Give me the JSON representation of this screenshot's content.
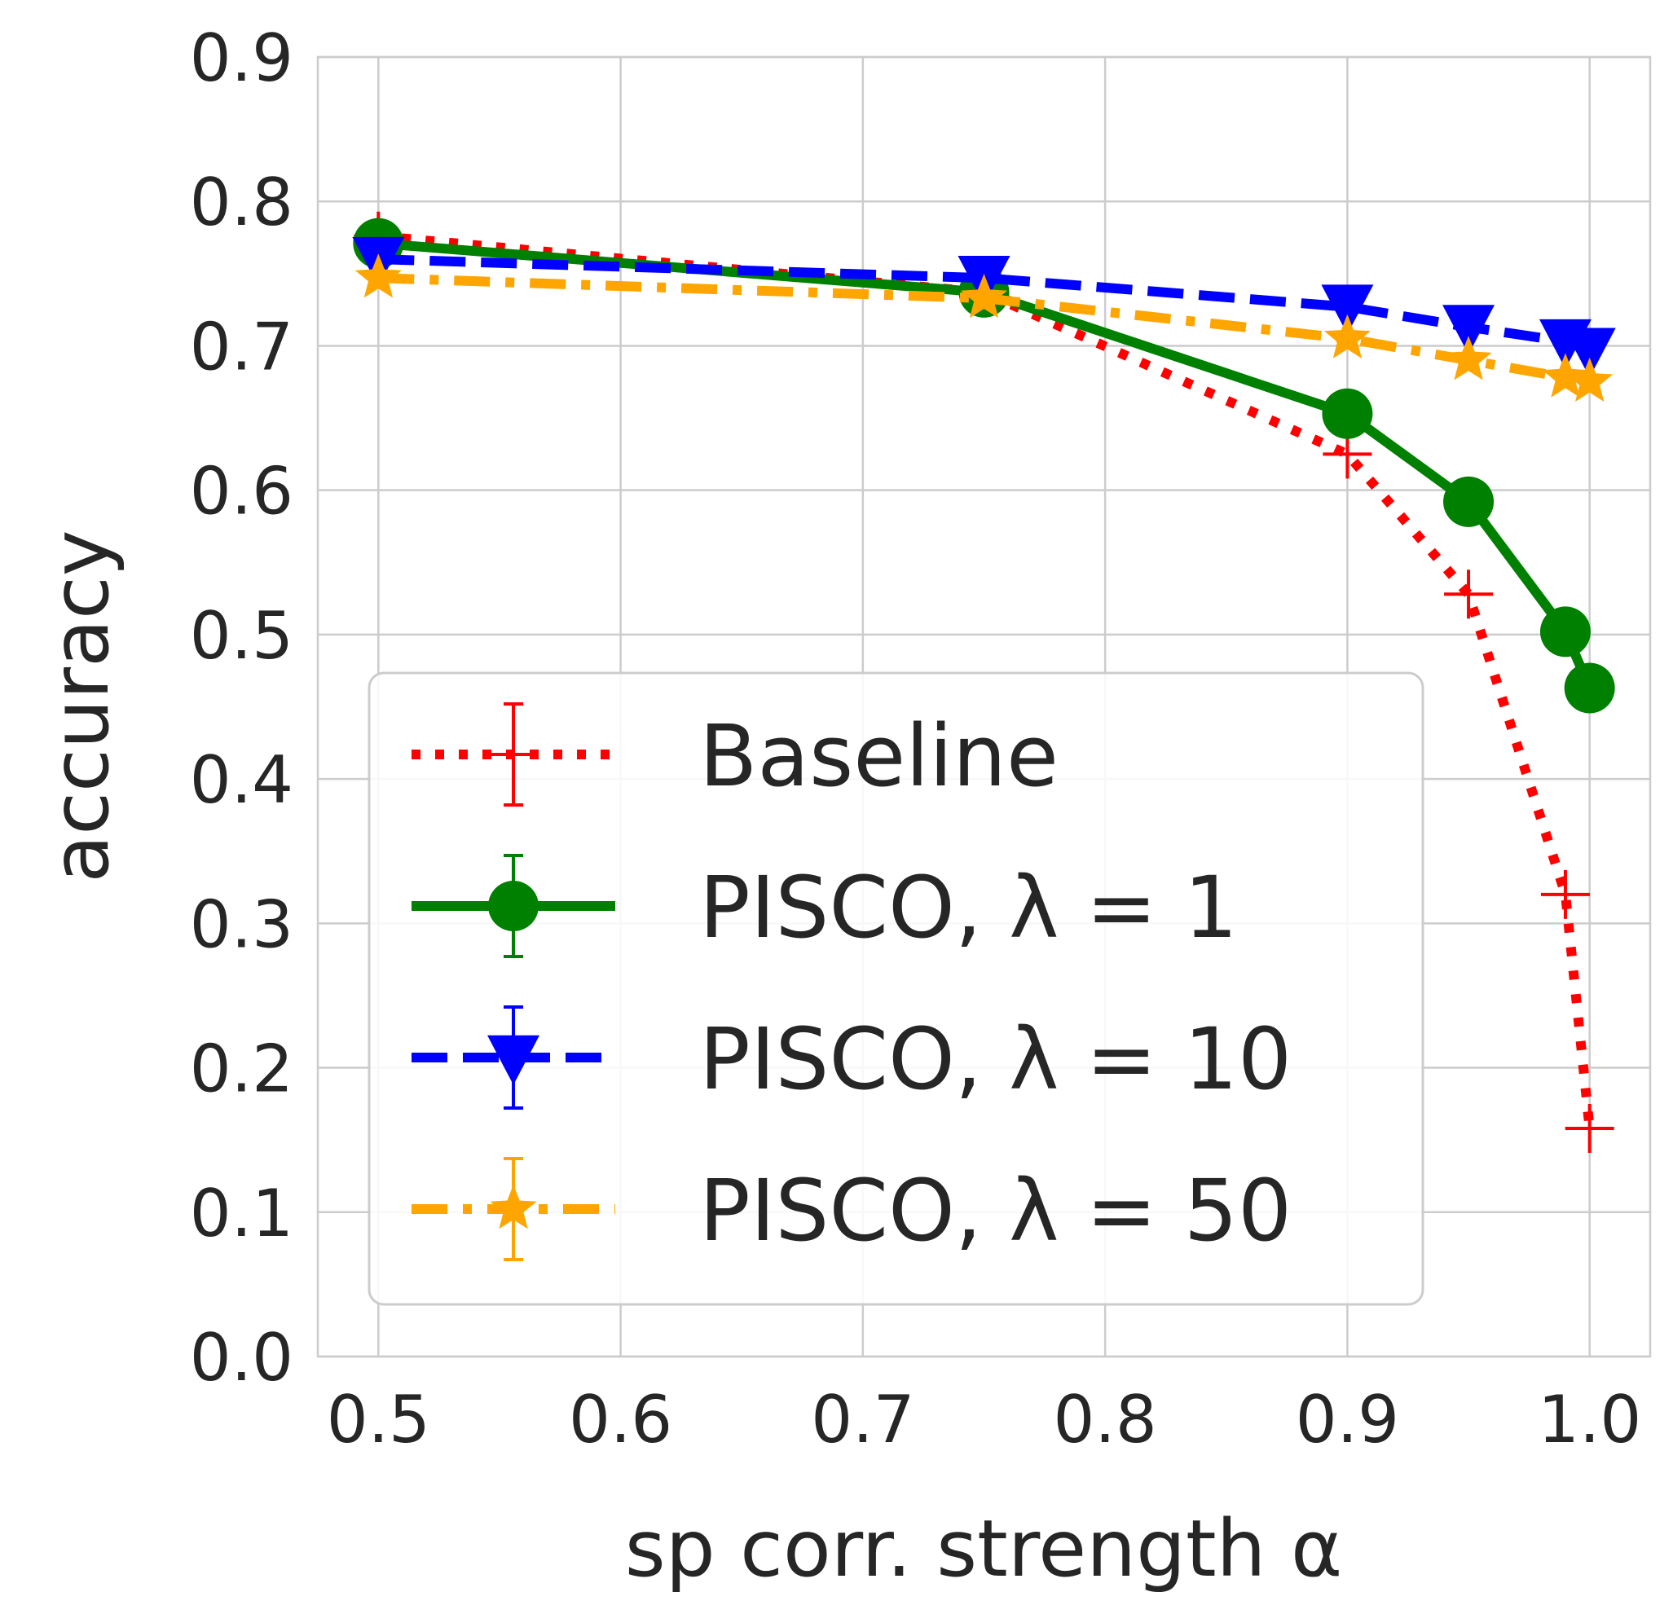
{
  "chart_data": {
    "type": "line",
    "title": "",
    "xlabel": "sp corr. strength α",
    "ylabel": "accuracy",
    "xlim": [
      0.475,
      1.025
    ],
    "ylim": [
      0.0,
      0.9
    ],
    "xticks": [
      "0.5",
      "0.6",
      "0.7",
      "0.8",
      "0.9",
      "1.0"
    ],
    "yticks": [
      "0.0",
      "0.1",
      "0.2",
      "0.3",
      "0.4",
      "0.5",
      "0.6",
      "0.7",
      "0.8",
      "0.9"
    ],
    "grid": true,
    "legend_position": "lower-left",
    "series": [
      {
        "name": "Baseline",
        "color": "#ff0000",
        "linestyle": "dotted",
        "marker": "plus",
        "x": [
          0.5,
          0.75,
          0.9,
          0.95,
          0.99,
          1.0
        ],
        "y": [
          0.776,
          0.737,
          0.625,
          0.528,
          0.32,
          0.158
        ]
      },
      {
        "name": "PISCO, λ = 1",
        "color": "#008000",
        "linestyle": "solid",
        "marker": "circle",
        "x": [
          0.5,
          0.75,
          0.9,
          0.95,
          0.99,
          1.0
        ],
        "y": [
          0.771,
          0.737,
          0.653,
          0.592,
          0.502,
          0.463
        ]
      },
      {
        "name": "PISCO, λ = 10",
        "color": "#0000ff",
        "linestyle": "dashed",
        "marker": "triangle-down",
        "x": [
          0.5,
          0.75,
          0.9,
          0.95,
          0.99,
          1.0
        ],
        "y": [
          0.76,
          0.747,
          0.727,
          0.713,
          0.703,
          0.697
        ]
      },
      {
        "name": "PISCO, λ = 50",
        "color": "#ffa500",
        "linestyle": "dashdot",
        "marker": "star",
        "x": [
          0.5,
          0.75,
          0.9,
          0.95,
          0.99,
          1.0
        ],
        "y": [
          0.747,
          0.733,
          0.705,
          0.69,
          0.678,
          0.675
        ]
      }
    ]
  }
}
